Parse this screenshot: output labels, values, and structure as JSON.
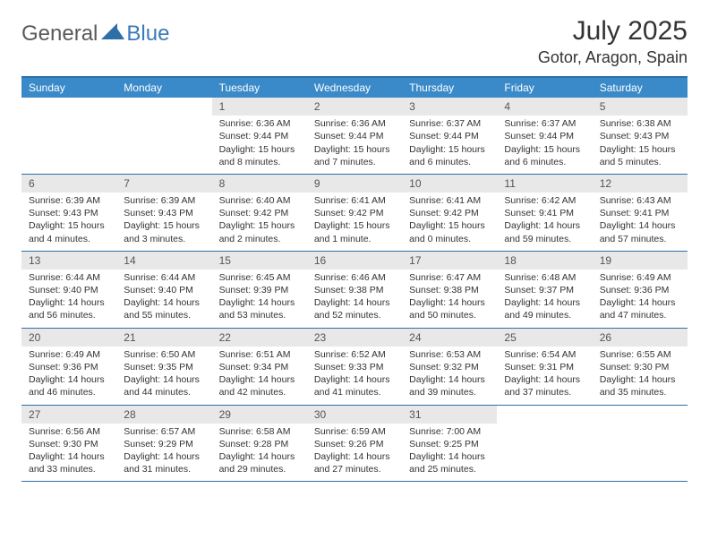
{
  "logo": {
    "text1": "General",
    "text2": "Blue"
  },
  "title": "July 2025",
  "location": "Gotor, Aragon, Spain",
  "colors": {
    "header_bar": "#3a8ac9",
    "rule": "#2e6fa7",
    "daynum_bg": "#e8e8e8",
    "text": "#333333",
    "logo_gray": "#5a5a5a",
    "logo_blue": "#3a7ab8"
  },
  "weekdays": [
    "Sunday",
    "Monday",
    "Tuesday",
    "Wednesday",
    "Thursday",
    "Friday",
    "Saturday"
  ],
  "weeks": [
    [
      {
        "blank": true
      },
      {
        "blank": true
      },
      {
        "n": "1",
        "sr": "Sunrise: 6:36 AM",
        "ss": "Sunset: 9:44 PM",
        "dl1": "Daylight: 15 hours",
        "dl2": "and 8 minutes."
      },
      {
        "n": "2",
        "sr": "Sunrise: 6:36 AM",
        "ss": "Sunset: 9:44 PM",
        "dl1": "Daylight: 15 hours",
        "dl2": "and 7 minutes."
      },
      {
        "n": "3",
        "sr": "Sunrise: 6:37 AM",
        "ss": "Sunset: 9:44 PM",
        "dl1": "Daylight: 15 hours",
        "dl2": "and 6 minutes."
      },
      {
        "n": "4",
        "sr": "Sunrise: 6:37 AM",
        "ss": "Sunset: 9:44 PM",
        "dl1": "Daylight: 15 hours",
        "dl2": "and 6 minutes."
      },
      {
        "n": "5",
        "sr": "Sunrise: 6:38 AM",
        "ss": "Sunset: 9:43 PM",
        "dl1": "Daylight: 15 hours",
        "dl2": "and 5 minutes."
      }
    ],
    [
      {
        "n": "6",
        "sr": "Sunrise: 6:39 AM",
        "ss": "Sunset: 9:43 PM",
        "dl1": "Daylight: 15 hours",
        "dl2": "and 4 minutes."
      },
      {
        "n": "7",
        "sr": "Sunrise: 6:39 AM",
        "ss": "Sunset: 9:43 PM",
        "dl1": "Daylight: 15 hours",
        "dl2": "and 3 minutes."
      },
      {
        "n": "8",
        "sr": "Sunrise: 6:40 AM",
        "ss": "Sunset: 9:42 PM",
        "dl1": "Daylight: 15 hours",
        "dl2": "and 2 minutes."
      },
      {
        "n": "9",
        "sr": "Sunrise: 6:41 AM",
        "ss": "Sunset: 9:42 PM",
        "dl1": "Daylight: 15 hours",
        "dl2": "and 1 minute."
      },
      {
        "n": "10",
        "sr": "Sunrise: 6:41 AM",
        "ss": "Sunset: 9:42 PM",
        "dl1": "Daylight: 15 hours",
        "dl2": "and 0 minutes."
      },
      {
        "n": "11",
        "sr": "Sunrise: 6:42 AM",
        "ss": "Sunset: 9:41 PM",
        "dl1": "Daylight: 14 hours",
        "dl2": "and 59 minutes."
      },
      {
        "n": "12",
        "sr": "Sunrise: 6:43 AM",
        "ss": "Sunset: 9:41 PM",
        "dl1": "Daylight: 14 hours",
        "dl2": "and 57 minutes."
      }
    ],
    [
      {
        "n": "13",
        "sr": "Sunrise: 6:44 AM",
        "ss": "Sunset: 9:40 PM",
        "dl1": "Daylight: 14 hours",
        "dl2": "and 56 minutes."
      },
      {
        "n": "14",
        "sr": "Sunrise: 6:44 AM",
        "ss": "Sunset: 9:40 PM",
        "dl1": "Daylight: 14 hours",
        "dl2": "and 55 minutes."
      },
      {
        "n": "15",
        "sr": "Sunrise: 6:45 AM",
        "ss": "Sunset: 9:39 PM",
        "dl1": "Daylight: 14 hours",
        "dl2": "and 53 minutes."
      },
      {
        "n": "16",
        "sr": "Sunrise: 6:46 AM",
        "ss": "Sunset: 9:38 PM",
        "dl1": "Daylight: 14 hours",
        "dl2": "and 52 minutes."
      },
      {
        "n": "17",
        "sr": "Sunrise: 6:47 AM",
        "ss": "Sunset: 9:38 PM",
        "dl1": "Daylight: 14 hours",
        "dl2": "and 50 minutes."
      },
      {
        "n": "18",
        "sr": "Sunrise: 6:48 AM",
        "ss": "Sunset: 9:37 PM",
        "dl1": "Daylight: 14 hours",
        "dl2": "and 49 minutes."
      },
      {
        "n": "19",
        "sr": "Sunrise: 6:49 AM",
        "ss": "Sunset: 9:36 PM",
        "dl1": "Daylight: 14 hours",
        "dl2": "and 47 minutes."
      }
    ],
    [
      {
        "n": "20",
        "sr": "Sunrise: 6:49 AM",
        "ss": "Sunset: 9:36 PM",
        "dl1": "Daylight: 14 hours",
        "dl2": "and 46 minutes."
      },
      {
        "n": "21",
        "sr": "Sunrise: 6:50 AM",
        "ss": "Sunset: 9:35 PM",
        "dl1": "Daylight: 14 hours",
        "dl2": "and 44 minutes."
      },
      {
        "n": "22",
        "sr": "Sunrise: 6:51 AM",
        "ss": "Sunset: 9:34 PM",
        "dl1": "Daylight: 14 hours",
        "dl2": "and 42 minutes."
      },
      {
        "n": "23",
        "sr": "Sunrise: 6:52 AM",
        "ss": "Sunset: 9:33 PM",
        "dl1": "Daylight: 14 hours",
        "dl2": "and 41 minutes."
      },
      {
        "n": "24",
        "sr": "Sunrise: 6:53 AM",
        "ss": "Sunset: 9:32 PM",
        "dl1": "Daylight: 14 hours",
        "dl2": "and 39 minutes."
      },
      {
        "n": "25",
        "sr": "Sunrise: 6:54 AM",
        "ss": "Sunset: 9:31 PM",
        "dl1": "Daylight: 14 hours",
        "dl2": "and 37 minutes."
      },
      {
        "n": "26",
        "sr": "Sunrise: 6:55 AM",
        "ss": "Sunset: 9:30 PM",
        "dl1": "Daylight: 14 hours",
        "dl2": "and 35 minutes."
      }
    ],
    [
      {
        "n": "27",
        "sr": "Sunrise: 6:56 AM",
        "ss": "Sunset: 9:30 PM",
        "dl1": "Daylight: 14 hours",
        "dl2": "and 33 minutes."
      },
      {
        "n": "28",
        "sr": "Sunrise: 6:57 AM",
        "ss": "Sunset: 9:29 PM",
        "dl1": "Daylight: 14 hours",
        "dl2": "and 31 minutes."
      },
      {
        "n": "29",
        "sr": "Sunrise: 6:58 AM",
        "ss": "Sunset: 9:28 PM",
        "dl1": "Daylight: 14 hours",
        "dl2": "and 29 minutes."
      },
      {
        "n": "30",
        "sr": "Sunrise: 6:59 AM",
        "ss": "Sunset: 9:26 PM",
        "dl1": "Daylight: 14 hours",
        "dl2": "and 27 minutes."
      },
      {
        "n": "31",
        "sr": "Sunrise: 7:00 AM",
        "ss": "Sunset: 9:25 PM",
        "dl1": "Daylight: 14 hours",
        "dl2": "and 25 minutes."
      },
      {
        "blank": true
      },
      {
        "blank": true
      }
    ]
  ]
}
